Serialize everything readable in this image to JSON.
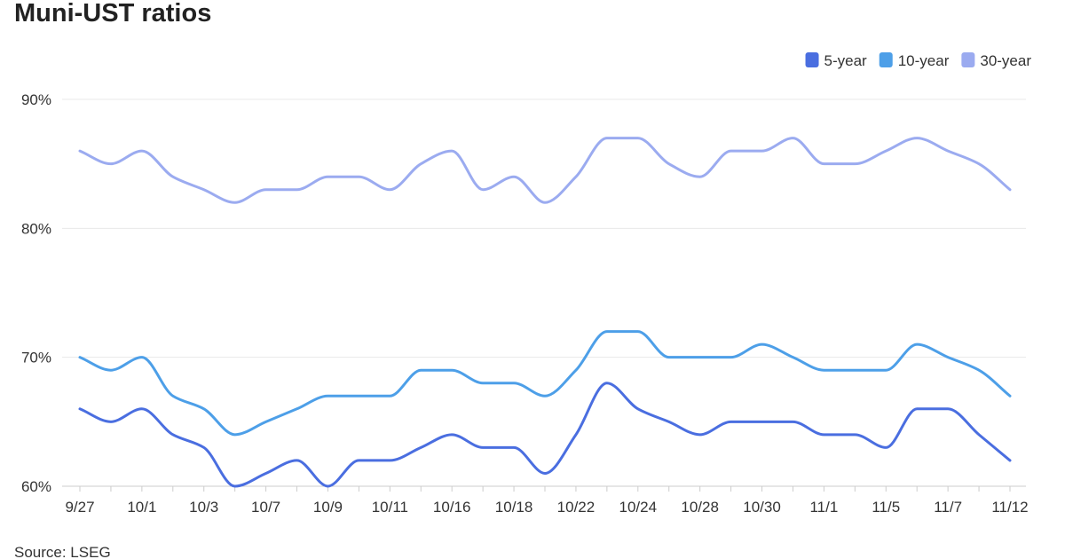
{
  "chart_data": {
    "type": "line",
    "title": "Muni-UST ratios",
    "source": "Source: LSEG",
    "categories": [
      "9/27",
      null,
      "10/1",
      null,
      "10/3",
      null,
      "10/7",
      null,
      "10/9",
      null,
      "10/11",
      null,
      "10/16",
      null,
      "10/18",
      null,
      "10/22",
      null,
      "10/24",
      null,
      "10/28",
      null,
      "10/30",
      null,
      "11/1",
      null,
      "11/5",
      null,
      "11/7",
      null,
      "11/12"
    ],
    "series": [
      {
        "name": "5-year",
        "color": "#4a6ee0",
        "values": [
          66,
          65,
          66,
          64,
          63,
          60,
          61,
          62,
          60,
          62,
          62,
          63,
          64,
          63,
          63,
          61,
          64,
          68,
          66,
          65,
          64,
          65,
          65,
          65,
          64,
          64,
          63,
          66,
          66,
          64,
          62
        ]
      },
      {
        "name": "10-year",
        "color": "#4d9fe8",
        "values": [
          70,
          69,
          70,
          67,
          66,
          64,
          65,
          66,
          67,
          67,
          67,
          69,
          69,
          68,
          68,
          67,
          69,
          72,
          72,
          70,
          70,
          70,
          71,
          70,
          69,
          69,
          69,
          71,
          70,
          69,
          67
        ]
      },
      {
        "name": "30-year",
        "color": "#9babf0",
        "values": [
          86,
          85,
          86,
          84,
          83,
          82,
          83,
          83,
          84,
          84,
          83,
          85,
          86,
          83,
          84,
          82,
          84,
          87,
          87,
          85,
          84,
          86,
          86,
          87,
          85,
          85,
          86,
          87,
          86,
          85,
          83
        ]
      }
    ],
    "ylim": [
      60,
      90
    ],
    "yticks": [
      {
        "value": 60,
        "label": "60%"
      },
      {
        "value": 70,
        "label": "70%"
      },
      {
        "value": 80,
        "label": "80%"
      },
      {
        "value": 90,
        "label": "90%"
      }
    ],
    "grid": true,
    "legend": "top-right"
  }
}
